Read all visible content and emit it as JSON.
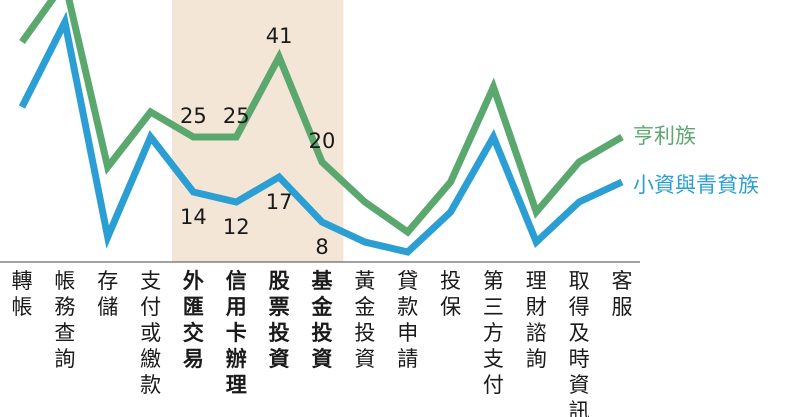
{
  "chart_data": {
    "type": "line",
    "title": "",
    "xlabel": "",
    "ylabel": "",
    "ylim": [
      0,
      50
    ],
    "grid": false,
    "legend": "right",
    "categories": [
      "轉帳",
      "帳務查詢",
      "存儲",
      "支付或繳款",
      "外匯交易",
      "信用卡辦理",
      "股票投資",
      "基金投資",
      "黃金投資",
      "貸款申請",
      "投保",
      "第三方支付",
      "理財諮詢",
      "取得及時資訊",
      "客服"
    ],
    "highlight_categories": [
      4,
      5,
      6,
      7
    ],
    "highlight_color": "#f3e6d6",
    "series": [
      {
        "name": "亨利族",
        "color": "#5ba86f",
        "values": [
          44,
          56,
          19,
          30,
          25,
          25,
          41,
          20,
          12,
          6,
          16,
          35,
          10,
          20,
          25
        ],
        "labels": {
          "4": "25",
          "5": "25",
          "6": "41",
          "7": "20"
        }
      },
      {
        "name": "小資與青貧族",
        "color": "#2b9fd3",
        "values": [
          31,
          48,
          5,
          25,
          14,
          12,
          17,
          8,
          4,
          2,
          10,
          25,
          4,
          12,
          16
        ],
        "labels": {
          "4": "14",
          "5": "12",
          "6": "17",
          "7": "8"
        }
      }
    ]
  }
}
